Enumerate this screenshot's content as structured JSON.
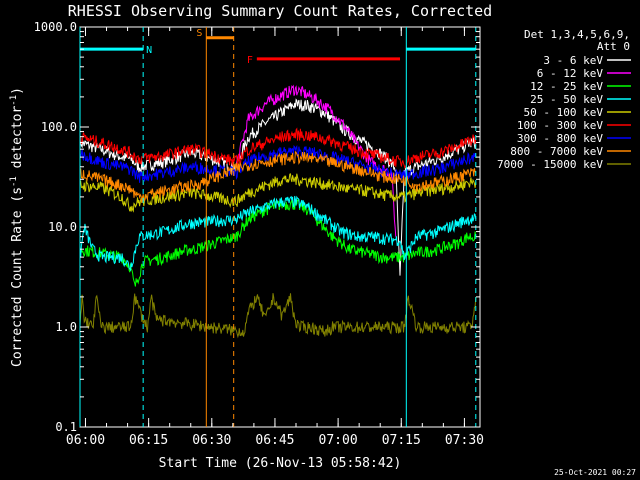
{
  "chart_data": {
    "type": "line",
    "title": "RHESSI Observing Summary Count Rates, Corrected",
    "xlabel": "Start Time (26-Nov-13 05:58:42)",
    "ylabel_main": "Corrected Count Rate (s",
    "ylabel_sup1": "-1",
    "ylabel_mid": " detector",
    "ylabel_sup2": "-1",
    "ylabel_end": ")",
    "yscale": "log",
    "ylim": [
      0.1,
      1000
    ],
    "xlim_min": [
      0,
      95
    ],
    "x_ticks": [
      {
        "label": "06:00",
        "min": 1.3
      },
      {
        "label": "06:15",
        "min": 16.3
      },
      {
        "label": "06:30",
        "min": 31.3
      },
      {
        "label": "06:45",
        "min": 46.3
      },
      {
        "label": "07:00",
        "min": 61.3
      },
      {
        "label": "07:15",
        "min": 76.3
      },
      {
        "label": "07:30",
        "min": 91.3
      }
    ],
    "y_ticks": [
      {
        "label": "0.1",
        "value": 0.1
      },
      {
        "label": "1.0",
        "value": 1
      },
      {
        "label": "10.0",
        "value": 10
      },
      {
        "label": "100.0",
        "value": 100
      },
      {
        "label": "1000.0",
        "value": 1000
      }
    ],
    "legend_title_1": "Det 1,3,4,5,6,9,",
    "legend_title_2": "Att 0",
    "legend_position": "right",
    "series": [
      {
        "name": "3 - 6 keV",
        "color": "#ffffff",
        "x": [
          0,
          5,
          10,
          12,
          14,
          20,
          26,
          27,
          37,
          40,
          44,
          49,
          51,
          54,
          58,
          62,
          66,
          70,
          73,
          75,
          76,
          77,
          80,
          85,
          90,
          92,
          94
        ],
        "y": [
          70,
          60,
          50,
          48,
          40,
          45,
          55,
          55,
          40,
          80,
          110,
          150,
          170,
          165,
          140,
          100,
          75,
          60,
          48,
          38,
          3,
          35,
          40,
          48,
          60,
          68,
          70
        ]
      },
      {
        "name": "6 - 12 keV",
        "color": "#ff00ff",
        "x": [
          37,
          40,
          44,
          47,
          50,
          51,
          53,
          56,
          60,
          63,
          66,
          69,
          72,
          74,
          75
        ],
        "y": [
          40,
          120,
          170,
          200,
          230,
          240,
          220,
          190,
          140,
          100,
          65,
          45,
          38,
          35,
          8
        ]
      },
      {
        "name": "12 - 25 keV",
        "color": "#00ff00",
        "x": [
          0,
          5,
          10,
          12,
          13,
          15,
          20,
          26,
          27,
          37,
          40,
          44,
          48,
          51,
          54,
          57,
          60,
          64,
          68,
          72,
          75,
          77,
          80,
          85,
          90,
          92,
          94
        ],
        "y": [
          6,
          5.5,
          5,
          4,
          2.5,
          4.5,
          5,
          6,
          6,
          8,
          12,
          15,
          17,
          17,
          15,
          11,
          8,
          6,
          5.5,
          5,
          5,
          5,
          5.5,
          6,
          7,
          8,
          8
        ]
      },
      {
        "name": "25 - 50 keV",
        "color": "#00ffff",
        "x": [
          0,
          1,
          3,
          5,
          10,
          12,
          14,
          20,
          26,
          27,
          37,
          40,
          44,
          48,
          51,
          54,
          58,
          62,
          66,
          70,
          74,
          76,
          77,
          80,
          85,
          90,
          92,
          94
        ],
        "y": [
          5,
          10,
          6,
          5,
          5,
          4,
          8,
          9,
          11,
          11,
          12,
          14,
          16,
          18,
          18,
          16,
          12,
          9,
          8,
          8,
          7.5,
          7.5,
          5,
          8,
          9,
          11,
          12,
          12
        ]
      },
      {
        "name": "50 - 100 keV",
        "color": "#cccc00",
        "x": [
          0,
          5,
          10,
          12,
          14,
          20,
          26,
          27,
          37,
          40,
          44,
          48,
          52,
          56,
          60,
          64,
          68,
          72,
          76,
          77,
          80,
          85,
          90,
          92,
          94
        ],
        "y": [
          26,
          25,
          20,
          16,
          18,
          20,
          22,
          22,
          18,
          22,
          26,
          30,
          30,
          28,
          26,
          24,
          23,
          21,
          20,
          20,
          22,
          24,
          26,
          28,
          28
        ]
      },
      {
        "name": "100 - 300 keV",
        "color": "#ff0000",
        "x": [
          0,
          5,
          10,
          12,
          14,
          20,
          26,
          27,
          37,
          40,
          44,
          48,
          52,
          56,
          60,
          64,
          68,
          72,
          76,
          77,
          80,
          85,
          90,
          92,
          94
        ],
        "y": [
          80,
          70,
          60,
          55,
          48,
          52,
          60,
          60,
          45,
          60,
          70,
          80,
          85,
          80,
          72,
          62,
          55,
          50,
          45,
          45,
          50,
          55,
          65,
          72,
          75
        ]
      },
      {
        "name": "300 - 800 keV",
        "color": "#0000ff",
        "x": [
          0,
          5,
          10,
          12,
          14,
          20,
          26,
          27,
          37,
          40,
          44,
          48,
          52,
          56,
          60,
          64,
          68,
          72,
          76,
          77,
          80,
          85,
          90,
          92,
          94
        ],
        "y": [
          55,
          45,
          40,
          38,
          32,
          35,
          40,
          40,
          35,
          45,
          52,
          56,
          58,
          55,
          50,
          45,
          40,
          36,
          33,
          33,
          35,
          38,
          45,
          48,
          50
        ]
      },
      {
        "name": "800 - 7000 keV",
        "color": "#ff8800",
        "x": [
          0,
          5,
          10,
          12,
          14,
          20,
          26,
          27,
          37,
          40,
          44,
          48,
          52,
          56,
          60,
          64,
          68,
          72,
          76,
          77,
          80,
          85,
          90,
          92,
          94
        ],
        "y": [
          35,
          30,
          26,
          24,
          20,
          23,
          26,
          26,
          38,
          42,
          45,
          48,
          50,
          48,
          44,
          40,
          36,
          32,
          30,
          30,
          26,
          28,
          32,
          34,
          35
        ]
      },
      {
        "name": "7000 - 15000 keV",
        "color": "#808000",
        "x": [
          0,
          0.5,
          1,
          3,
          4,
          5,
          12,
          13,
          15,
          16,
          17,
          18,
          39,
          40,
          42,
          44,
          46,
          48,
          50,
          51,
          52,
          55,
          58,
          60,
          77,
          78,
          80,
          85,
          90,
          93,
          94
        ],
        "y": [
          1,
          2,
          1.2,
          1,
          2,
          1,
          1,
          2,
          1.2,
          1,
          2,
          1.2,
          0.9,
          1.4,
          2,
          1.2,
          2,
          1.3,
          2,
          1.2,
          1,
          1,
          0.9,
          1,
          1,
          2,
          1,
          1,
          1,
          1,
          2
        ]
      }
    ],
    "intervals": [
      {
        "label": "N",
        "color": "#00ffff",
        "x1": 0,
        "x2": 15,
        "y": 600,
        "start_dash": 0,
        "end_dash": 15
      },
      {
        "label": "",
        "color": "#00ffff",
        "x1": 77.5,
        "x2": 94,
        "y": 600,
        "start_dash": 77.5,
        "end_dash": 94
      },
      {
        "label": "S",
        "color": "#ff8800",
        "x1": 30,
        "x2": 36.5,
        "y": 780,
        "start_dash": 30,
        "end_dash": 36.5
      },
      {
        "label": "F",
        "color": "#ff0000",
        "x1": 42,
        "x2": 76,
        "y": 480,
        "start_dash": null,
        "end_dash": null
      }
    ],
    "datestamp": "25-Oct-2021 00:27"
  }
}
